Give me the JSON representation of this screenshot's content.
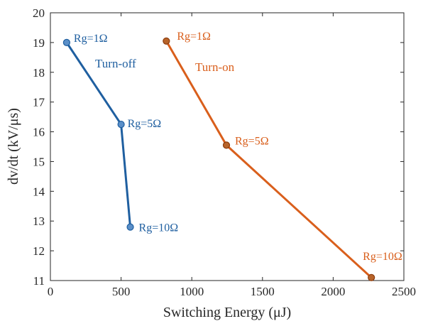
{
  "chart_data": {
    "type": "line",
    "xlabel": "Switching Energy (μJ)",
    "ylabel": "dv/dt (kV/μs)",
    "xlim": [
      0,
      2500
    ],
    "ylim": [
      11,
      20
    ],
    "xticks": [
      "0",
      "500",
      "1000",
      "1500",
      "2000",
      "2500"
    ],
    "yticks": [
      "11",
      "12",
      "13",
      "14",
      "15",
      "16",
      "17",
      "18",
      "19",
      "20"
    ],
    "grid": false,
    "series": [
      {
        "name": "Turn-off",
        "color": "#1f5fa0",
        "x": [
          115,
          500,
          565
        ],
        "y": [
          19.0,
          16.25,
          12.8
        ],
        "point_labels": [
          "Rg=1Ω",
          "Rg=5Ω",
          "Rg=10Ω"
        ]
      },
      {
        "name": "Turn-on",
        "color": "#d95f1c",
        "x": [
          820,
          1245,
          2270
        ],
        "y": [
          19.05,
          15.55,
          11.1
        ],
        "point_labels": [
          "Rg=1Ω",
          "Rg=5Ω",
          "Rg=10Ω"
        ]
      }
    ]
  }
}
